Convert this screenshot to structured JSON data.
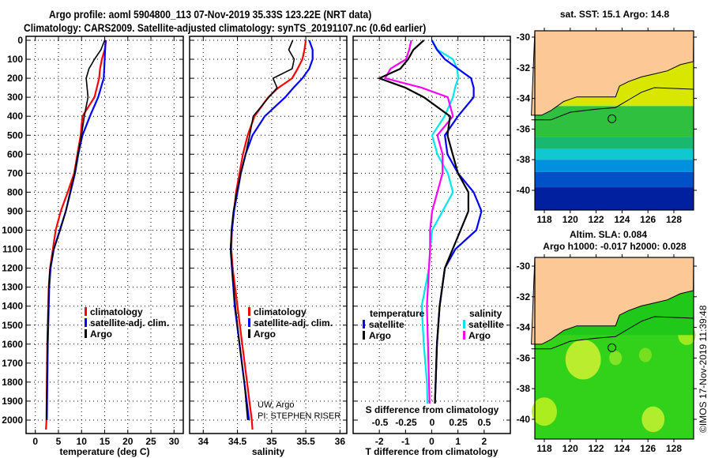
{
  "header": {
    "line1": "Argo profile: aoml 5904800_113 07-Nov-2019 35.33S 123.22E (NRT data)",
    "line2": "Climatology: CARS2009. Satellite-adjusted climatology: synTS_20191107.nc (0.6d earlier)"
  },
  "colors": {
    "climatology": "#ff0000",
    "satellite": "#0000ff",
    "argo": "#000000",
    "sal_satellite": "#00e5ee",
    "sal_argo": "#ff00ff",
    "land": "#fcc896"
  },
  "chart_data": [
    {
      "type": "line",
      "title": "",
      "xlabel": "temperature (deg C)",
      "ylabel": "",
      "xlim": [
        -2,
        32
      ],
      "ylim": [
        2070,
        0
      ],
      "xticks": [
        "0",
        "5",
        "10",
        "15",
        "20",
        "25",
        "30"
      ],
      "xtick_values": [
        0,
        5,
        10,
        15,
        20,
        25,
        30
      ],
      "yticks": [
        "0",
        "100",
        "200",
        "300",
        "400",
        "500",
        "600",
        "700",
        "800",
        "900",
        "1000",
        "1100",
        "1200",
        "1300",
        "1400",
        "1500",
        "1600",
        "1700",
        "1800",
        "1900",
        "2000"
      ],
      "legend": [
        "climatology",
        "satellite-adj. clim.",
        "Argo"
      ],
      "legend_placement": "center-right",
      "depth": [
        0,
        50,
        100,
        150,
        200,
        300,
        400,
        500,
        600,
        700,
        800,
        900,
        1000,
        1100,
        1200,
        1300,
        1400,
        1500,
        1600,
        1800,
        2000,
        2050
      ],
      "series": [
        {
          "name": "climatology",
          "values": [
            15.3,
            15.0,
            14.4,
            14.0,
            13.8,
            12.8,
            10.2,
            9.8,
            9.1,
            8.4,
            7.0,
            5.5,
            4.4,
            3.8,
            3.2,
            2.9,
            2.8,
            2.7,
            2.6,
            2.5,
            2.4,
            2.3
          ]
        },
        {
          "name": "satellite-adj. clim.",
          "values": [
            15.2,
            15.1,
            15.0,
            14.9,
            14.8,
            13.6,
            11.8,
            10.2,
            9.3,
            8.6,
            7.6,
            6.6,
            5.3,
            4.0,
            3.3,
            3.0,
            2.9,
            2.8,
            2.7,
            2.6,
            2.5,
            null
          ]
        },
        {
          "name": "Argo",
          "values": [
            15.0,
            14.2,
            12.8,
            11.6,
            11.0,
            11.4,
            10.6,
            10.0,
            9.2,
            8.5,
            7.5,
            6.6,
            5.4,
            4.0,
            3.2,
            2.9,
            2.8,
            2.7,
            2.6,
            2.5,
            2.4,
            null
          ]
        }
      ]
    },
    {
      "type": "line",
      "xlabel": "salinity",
      "xlim": [
        33.8,
        36.1
      ],
      "ylim": [
        2070,
        0
      ],
      "xticks": [
        "34",
        "34.5",
        "35",
        "35.5",
        "36"
      ],
      "xtick_values": [
        34,
        34.5,
        35,
        35.5,
        36
      ],
      "legend": [
        "climatology",
        "satellite-adj. clim.",
        "Argo"
      ],
      "legend_placement": "center-right",
      "annotation": [
        "UW, Argo",
        "PI: STEPHEN RISER"
      ],
      "depth": [
        0,
        50,
        100,
        150,
        200,
        250,
        300,
        400,
        500,
        600,
        700,
        800,
        900,
        1000,
        1100,
        1200,
        1400,
        1600,
        1800,
        2000,
        2050
      ],
      "series": [
        {
          "name": "climatology",
          "values": [
            35.5,
            35.48,
            35.45,
            35.38,
            35.3,
            35.1,
            34.95,
            34.75,
            34.65,
            34.58,
            34.53,
            34.48,
            34.45,
            34.42,
            34.41,
            34.43,
            34.5,
            34.57,
            34.64,
            34.71,
            34.72
          ]
        },
        {
          "name": "satellite-adj. clim.",
          "values": [
            35.55,
            35.6,
            35.6,
            35.55,
            35.45,
            35.32,
            35.2,
            34.9,
            34.72,
            34.62,
            34.55,
            34.5,
            34.45,
            34.42,
            34.4,
            34.42,
            34.46,
            34.53,
            34.6,
            34.67,
            null
          ]
        },
        {
          "name": "Argo",
          "values": [
            35.31,
            35.25,
            35.33,
            35.3,
            35.02,
            35.08,
            34.96,
            34.73,
            34.68,
            34.62,
            34.55,
            34.49,
            34.44,
            34.41,
            34.4,
            34.42,
            34.47,
            34.53,
            34.6,
            34.65,
            null
          ]
        }
      ]
    },
    {
      "type": "line",
      "xlabel": "T difference from climatology",
      "xlabel2": "S difference from climatology",
      "xlim": [
        -3.0,
        3.0
      ],
      "ylim": [
        2070,
        0
      ],
      "xticks": [
        "-2",
        "-1",
        "0",
        "1",
        "2"
      ],
      "xtick_values": [
        -2,
        -1,
        0,
        1,
        2
      ],
      "x2lim": [
        -0.75,
        0.75
      ],
      "x2ticks": [
        "-0.5",
        "-0.25",
        "0",
        "0.25",
        "0.5"
      ],
      "x2tick_values": [
        -0.5,
        -0.25,
        0,
        0.25,
        0.5
      ],
      "legend_temperature_title": "temperature",
      "legend_salinity_title": "salinity",
      "legend_temperature": [
        "satellite",
        "Argo"
      ],
      "legend_salinity": [
        "satellite",
        "Argo"
      ],
      "depth": [
        0,
        50,
        100,
        150,
        200,
        250,
        300,
        400,
        500,
        600,
        700,
        800,
        900,
        1000,
        1100,
        1200,
        1400,
        1600,
        1800,
        2000
      ],
      "series": [
        {
          "name": "T satellite",
          "axis": "T",
          "values": [
            0.0,
            0.2,
            0.5,
            1.0,
            1.5,
            1.6,
            1.6,
            1.0,
            0.5,
            0.6,
            1.0,
            1.6,
            1.9,
            1.7,
            0.9,
            0.5,
            0.3,
            0.2,
            0.15,
            0.1
          ]
        },
        {
          "name": "T Argo",
          "axis": "T",
          "values": [
            -0.3,
            -0.7,
            -0.9,
            -1.2,
            -2.0,
            -1.0,
            -0.3,
            0.7,
            0.6,
            0.8,
            1.0,
            1.4,
            1.4,
            1.1,
            0.8,
            0.5,
            0.3,
            0.2,
            0.15,
            0.1
          ]
        },
        {
          "name": "S satellite",
          "axis": "S",
          "values": [
            0.0,
            0.05,
            0.2,
            0.24,
            0.25,
            0.22,
            0.2,
            0.12,
            0.0,
            0.05,
            0.15,
            0.2,
            0.1,
            0.0,
            -0.02,
            -0.03,
            -0.1,
            -0.08,
            -0.05,
            -0.04
          ]
        },
        {
          "name": "S Argo",
          "axis": "S",
          "values": [
            -0.2,
            -0.22,
            -0.25,
            -0.4,
            -0.45,
            -0.1,
            0.15,
            0.2,
            0.05,
            0.1,
            0.1,
            0.05,
            0.0,
            -0.02,
            -0.02,
            -0.03,
            -0.05,
            -0.04,
            -0.03,
            -0.02
          ]
        }
      ]
    },
    {
      "type": "heatmap",
      "title": "sat. SST: 15.1 Argo: 14.8",
      "xlim": [
        117,
        129.5
      ],
      "ylim": [
        -41.3,
        -29.4
      ],
      "xticks": [
        "118",
        "120",
        "122",
        "124",
        "126",
        "128"
      ],
      "xtick_values": [
        118,
        120,
        122,
        124,
        126,
        128
      ],
      "yticks": [
        "-30",
        "-32",
        "-34",
        "-36",
        "-38",
        "-40"
      ],
      "ytick_values": [
        -30,
        -32,
        -34,
        -36,
        -38,
        -40
      ],
      "marker": {
        "lon": 123.22,
        "lat": -35.33
      }
    },
    {
      "type": "heatmap",
      "title": "Altim. SLA: 0.084",
      "subtitle": "Argo h1000: -0.017 h2000: 0.028",
      "xlim": [
        117,
        129.5
      ],
      "ylim": [
        -41.3,
        -29.4
      ],
      "xticks": [
        "118",
        "120",
        "122",
        "124",
        "126",
        "128"
      ],
      "xtick_values": [
        118,
        120,
        122,
        124,
        126,
        128
      ],
      "yticks": [
        "-30",
        "-32",
        "-34",
        "-36",
        "-38",
        "-40"
      ],
      "ytick_values": [
        -30,
        -32,
        -34,
        -36,
        -38,
        -40
      ],
      "marker": {
        "lon": 123.22,
        "lat": -35.33
      },
      "credit": "©IMOS 17-Nov-2019 11:39:48"
    }
  ]
}
